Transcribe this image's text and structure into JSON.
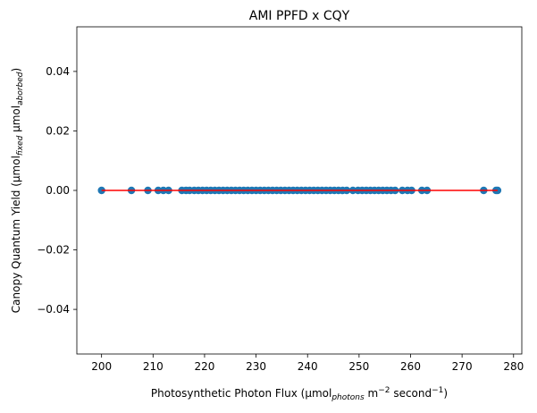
{
  "chart_data": {
    "type": "scatter",
    "title": "AMI PPFD x CQY",
    "xlabel": {
      "prefix": "Photosynthetic Photon Flux (μmol",
      "sub": "photons",
      "mid1": " m",
      "sup1": "−2",
      "mid2": " second",
      "sup2": "−1",
      "suffix": ")"
    },
    "ylabel": {
      "prefix": "Canopy Quantum Yield (μmol",
      "sub1": "fixed",
      "mid": " μmol",
      "sub2": "aborbed",
      "suffix": ")"
    },
    "xlim": [
      195.2,
      281.6
    ],
    "ylim": [
      -0.055,
      0.055
    ],
    "xticks": [
      200,
      210,
      220,
      230,
      240,
      250,
      260,
      270,
      280
    ],
    "yticks": [
      -0.04,
      -0.02,
      0.0,
      0.02,
      0.04
    ],
    "ytick_labels": [
      "−0.04",
      "−0.02",
      "0.00",
      "0.02",
      "0.04"
    ],
    "points": {
      "color": "#1f77b4",
      "x": [
        200,
        205.8,
        209,
        211,
        212,
        213,
        215.6,
        216.4,
        217.1,
        218,
        218.8,
        219.6,
        220.4,
        221.2,
        222,
        222.8,
        223.6,
        224.4,
        225.2,
        226,
        226.8,
        227.6,
        228.4,
        229.2,
        230,
        230.8,
        231.6,
        232.4,
        233.2,
        234,
        234.8,
        235.6,
        236.4,
        237.2,
        238,
        238.8,
        239.6,
        240.4,
        241.2,
        242,
        242.8,
        243.6,
        244.4,
        245.2,
        246,
        246.8,
        247.6,
        248.8,
        249.8,
        250.6,
        251.4,
        252.2,
        253,
        253.8,
        254.6,
        255.4,
        256.2,
        257,
        258.4,
        259.4,
        260.2,
        262.2,
        263.2,
        274.2,
        276.6,
        276.9
      ],
      "y": [
        0,
        0,
        0,
        0,
        0,
        0,
        0,
        0,
        0,
        0,
        0,
        0,
        0,
        0,
        0,
        0,
        0,
        0,
        0,
        0,
        0,
        0,
        0,
        0,
        0,
        0,
        0,
        0,
        0,
        0,
        0,
        0,
        0,
        0,
        0,
        0,
        0,
        0,
        0,
        0,
        0,
        0,
        0,
        0,
        0,
        0,
        0,
        0,
        0,
        0,
        0,
        0,
        0,
        0,
        0,
        0,
        0,
        0,
        0,
        0,
        0,
        0,
        0,
        0,
        0,
        0
      ]
    },
    "fit_line": {
      "color": "#ff0000",
      "x": [
        200,
        276.9
      ],
      "y": [
        0,
        0
      ]
    },
    "grid": false,
    "legend": false
  }
}
